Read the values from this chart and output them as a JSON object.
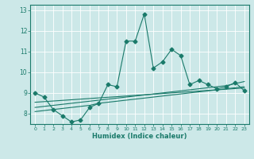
{
  "xlabel": "Humidex (Indice chaleur)",
  "bg_color": "#cce8e8",
  "line_color": "#1a7a6a",
  "grid_color": "#b0d8d8",
  "xlim": [
    -0.5,
    23.5
  ],
  "ylim": [
    7.5,
    13.25
  ],
  "yticks": [
    8,
    9,
    10,
    11,
    12,
    13
  ],
  "xticks": [
    0,
    1,
    2,
    3,
    4,
    5,
    6,
    7,
    8,
    9,
    10,
    11,
    12,
    13,
    14,
    15,
    16,
    17,
    18,
    19,
    20,
    21,
    22,
    23
  ],
  "main_line": [
    9.0,
    8.8,
    8.2,
    7.9,
    7.6,
    7.7,
    8.3,
    8.5,
    9.4,
    9.3,
    11.5,
    11.5,
    12.8,
    10.2,
    10.5,
    11.1,
    10.8,
    9.4,
    9.6,
    9.4,
    9.2,
    9.3,
    9.5,
    9.1
  ],
  "line2": [
    8.1,
    8.15,
    8.2,
    8.25,
    8.3,
    8.35,
    8.4,
    8.5,
    8.55,
    8.6,
    8.65,
    8.7,
    8.75,
    8.8,
    8.85,
    8.9,
    8.95,
    9.0,
    9.05,
    9.1,
    9.15,
    9.2,
    9.25,
    9.3
  ],
  "line3": [
    8.3,
    8.35,
    8.4,
    8.45,
    8.5,
    8.55,
    8.6,
    8.65,
    8.7,
    8.75,
    8.8,
    8.85,
    8.9,
    8.95,
    9.0,
    9.05,
    9.1,
    9.15,
    9.2,
    9.25,
    9.3,
    9.35,
    9.45,
    9.55
  ],
  "line4": [
    8.55,
    8.58,
    8.61,
    8.64,
    8.67,
    8.7,
    8.73,
    8.76,
    8.79,
    8.82,
    8.85,
    8.88,
    8.91,
    8.94,
    8.97,
    9.0,
    9.03,
    9.06,
    9.09,
    9.12,
    9.15,
    9.18,
    9.21,
    9.24
  ]
}
